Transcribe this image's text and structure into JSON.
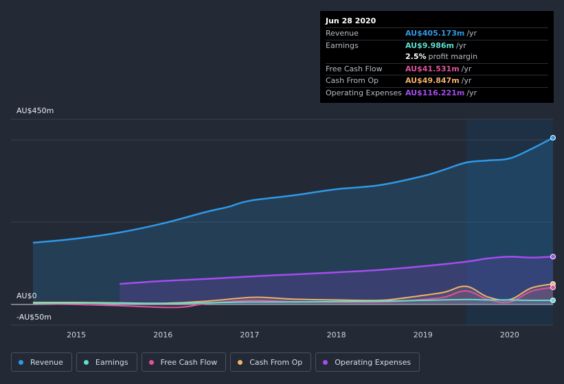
{
  "tooltip": {
    "date": "Jun 28 2020",
    "rows": [
      {
        "label": "Revenue",
        "value": "AU$405.173m",
        "unit": "/yr",
        "color": "#2f9ae8"
      },
      {
        "label": "Earnings",
        "value": "AU$9.986m",
        "unit": "/yr",
        "color": "#5fe0cf"
      },
      {
        "label": "",
        "value": "2.5%",
        "unit": "profit margin",
        "color": "#ffffff"
      },
      {
        "label": "Free Cash Flow",
        "value": "AU$41.531m",
        "unit": "/yr",
        "color": "#e0529c"
      },
      {
        "label": "Cash From Op",
        "value": "AU$49.847m",
        "unit": "/yr",
        "color": "#f3b26b"
      },
      {
        "label": "Operating Expenses",
        "value": "AU$116.221m",
        "unit": "/yr",
        "color": "#a64cf0"
      }
    ]
  },
  "legend": [
    {
      "label": "Revenue",
      "color": "#2f9ae8"
    },
    {
      "label": "Earnings",
      "color": "#5fe0cf"
    },
    {
      "label": "Free Cash Flow",
      "color": "#e0529c"
    },
    {
      "label": "Cash From Op",
      "color": "#f3b26b"
    },
    {
      "label": "Operating Expenses",
      "color": "#a64cf0"
    }
  ],
  "chart_data": {
    "type": "area",
    "y_top_label": "AU$450m",
    "y_zero_label": "AU$0",
    "y_bottom_label": "-AU$50m",
    "ylim": [
      -50,
      450
    ],
    "xlim": [
      2014.5,
      2020.5
    ],
    "x_ticks": [
      {
        "label": "2015",
        "value": 2015
      },
      {
        "label": "2016",
        "value": 2016
      },
      {
        "label": "2017",
        "value": 2017
      },
      {
        "label": "2018",
        "value": 2018
      },
      {
        "label": "2019",
        "value": 2019
      },
      {
        "label": "2020",
        "value": 2020
      }
    ],
    "gridlines": [
      400,
      200,
      0
    ],
    "highlight_start": 2019.5,
    "series": [
      {
        "name": "Revenue",
        "color": "#2f9ae8",
        "fill": true,
        "points": [
          [
            2014.5,
            150
          ],
          [
            2015.0,
            160
          ],
          [
            2015.5,
            175
          ],
          [
            2016.0,
            197
          ],
          [
            2016.5,
            225
          ],
          [
            2016.75,
            237
          ],
          [
            2017.0,
            252
          ],
          [
            2017.5,
            265
          ],
          [
            2018.0,
            280
          ],
          [
            2018.5,
            290
          ],
          [
            2019.0,
            312
          ],
          [
            2019.25,
            328
          ],
          [
            2019.5,
            345
          ],
          [
            2019.75,
            350
          ],
          [
            2020.0,
            355
          ],
          [
            2020.25,
            378
          ],
          [
            2020.5,
            405.173
          ]
        ]
      },
      {
        "name": "Operating Expenses",
        "color": "#a64cf0",
        "fill": true,
        "points": [
          [
            2015.5,
            50
          ],
          [
            2016.0,
            57
          ],
          [
            2016.5,
            62
          ],
          [
            2017.0,
            68
          ],
          [
            2017.5,
            73
          ],
          [
            2018.0,
            78
          ],
          [
            2018.5,
            84
          ],
          [
            2019.0,
            93
          ],
          [
            2019.5,
            104
          ],
          [
            2019.75,
            112
          ],
          [
            2020.0,
            116
          ],
          [
            2020.25,
            114
          ],
          [
            2020.5,
            116.221
          ]
        ]
      },
      {
        "name": "Cash From Op",
        "color": "#f3b26b",
        "fill": false,
        "points": [
          [
            2014.5,
            5
          ],
          [
            2015.0,
            5
          ],
          [
            2015.5,
            4
          ],
          [
            2016.0,
            3
          ],
          [
            2016.5,
            8
          ],
          [
            2017.0,
            17
          ],
          [
            2017.25,
            16
          ],
          [
            2017.5,
            13
          ],
          [
            2018.0,
            11
          ],
          [
            2018.5,
            10
          ],
          [
            2018.75,
            15
          ],
          [
            2019.0,
            22
          ],
          [
            2019.25,
            30
          ],
          [
            2019.5,
            44
          ],
          [
            2019.75,
            18
          ],
          [
            2020.0,
            12
          ],
          [
            2020.25,
            40
          ],
          [
            2020.5,
            49.847
          ]
        ]
      },
      {
        "name": "Free Cash Flow",
        "color": "#e0529c",
        "fill": false,
        "points": [
          [
            2014.5,
            2
          ],
          [
            2015.0,
            0
          ],
          [
            2015.5,
            -3
          ],
          [
            2016.0,
            -7
          ],
          [
            2016.25,
            -6
          ],
          [
            2016.5,
            2
          ],
          [
            2017.0,
            10
          ],
          [
            2017.5,
            7
          ],
          [
            2018.0,
            6
          ],
          [
            2018.5,
            6
          ],
          [
            2018.75,
            8
          ],
          [
            2019.0,
            12
          ],
          [
            2019.25,
            18
          ],
          [
            2019.5,
            33
          ],
          [
            2019.75,
            12
          ],
          [
            2020.0,
            6
          ],
          [
            2020.25,
            32
          ],
          [
            2020.5,
            41.531
          ]
        ]
      },
      {
        "name": "Earnings",
        "color": "#5fe0cf",
        "fill": false,
        "points": [
          [
            2014.5,
            3
          ],
          [
            2015.0,
            3
          ],
          [
            2015.5,
            3
          ],
          [
            2016.0,
            2
          ],
          [
            2016.5,
            4
          ],
          [
            2017.0,
            6
          ],
          [
            2017.5,
            6
          ],
          [
            2018.0,
            7
          ],
          [
            2018.5,
            8
          ],
          [
            2019.0,
            10
          ],
          [
            2019.5,
            12
          ],
          [
            2019.75,
            11
          ],
          [
            2020.0,
            11
          ],
          [
            2020.25,
            10
          ],
          [
            2020.5,
            9.986
          ]
        ]
      }
    ]
  }
}
